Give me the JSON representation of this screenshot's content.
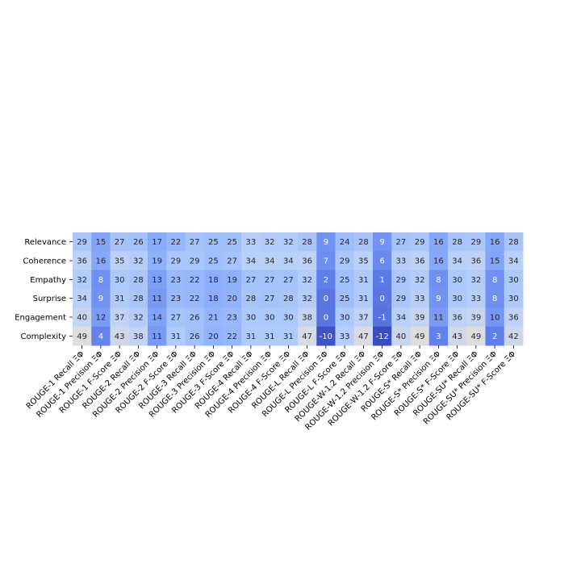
{
  "chart_data": {
    "type": "heatmap",
    "title": "",
    "xlabel": "",
    "ylabel": "",
    "colormap": "coolwarm (low values dark blue, high values light grey)",
    "grid": false,
    "colorbar": false,
    "rows": [
      "Relevance",
      "Coherence",
      "Empathy",
      "Surprise",
      "Engagement",
      "Complexity"
    ],
    "columns": [
      "ROUGE-1 Recall ΞΦ",
      "ROUGE-1 Precision ΞΦ",
      "ROUGE-1 F-Score ΞΦ",
      "ROUGE-2 Recall ΞΦ",
      "ROUGE-2 Precision ΞΦ",
      "ROUGE-2 F-Score ΞΦ",
      "ROUGE-3 Recall ΞΦ",
      "ROUGE-3 Precision ΞΦ",
      "ROUGE-3 F-Score ΞΦ",
      "ROUGE-4 Recall ΞΦ",
      "ROUGE-4 Precision ΞΦ",
      "ROUGE-4 F-Score ΞΦ",
      "ROUGE-L Recall ΞΦ",
      "ROUGE-L Precision ΞΦ",
      "ROUGE-L F-Score ΞΦ",
      "ROUGE-W-1.2 Recall ΞΦ",
      "ROUGE-W-1.2 Precision ΞΦ",
      "ROUGE-W-1.2 F-Score ΞΦ",
      "ROUGE-S* Recall ΞΦ",
      "ROUGE-S* Precision ΞΦ",
      "ROUGE-S* F-Score ΞΦ",
      "ROUGE-SU* Recall ΞΦ",
      "ROUGE-SU* Precision ΞΦ",
      "ROUGE-SU* F-Score ΞΦ"
    ],
    "values": [
      [
        29,
        15,
        27,
        26,
        17,
        22,
        27,
        25,
        25,
        33,
        32,
        32,
        28,
        9,
        24,
        28,
        9,
        27,
        29,
        16,
        28,
        29,
        16,
        28
      ],
      [
        36,
        16,
        35,
        32,
        19,
        29,
        29,
        25,
        27,
        34,
        34,
        34,
        36,
        7,
        29,
        35,
        6,
        33,
        36,
        16,
        34,
        36,
        15,
        34
      ],
      [
        32,
        8,
        30,
        28,
        13,
        23,
        22,
        18,
        19,
        27,
        27,
        27,
        32,
        2,
        25,
        31,
        1,
        29,
        32,
        8,
        30,
        32,
        8,
        30
      ],
      [
        34,
        9,
        31,
        28,
        11,
        23,
        22,
        18,
        20,
        28,
        27,
        28,
        32,
        0,
        25,
        31,
        0,
        29,
        33,
        9,
        30,
        33,
        8,
        30
      ],
      [
        40,
        12,
        37,
        32,
        14,
        27,
        26,
        21,
        23,
        30,
        30,
        30,
        38,
        0,
        30,
        37,
        -1,
        34,
        39,
        11,
        36,
        39,
        10,
        36
      ],
      [
        49,
        4,
        43,
        38,
        11,
        31,
        26,
        20,
        22,
        31,
        31,
        31,
        47,
        -10,
        33,
        47,
        -12,
        40,
        49,
        3,
        43,
        49,
        2,
        42
      ]
    ],
    "vmin": -12,
    "vmax": 49
  }
}
